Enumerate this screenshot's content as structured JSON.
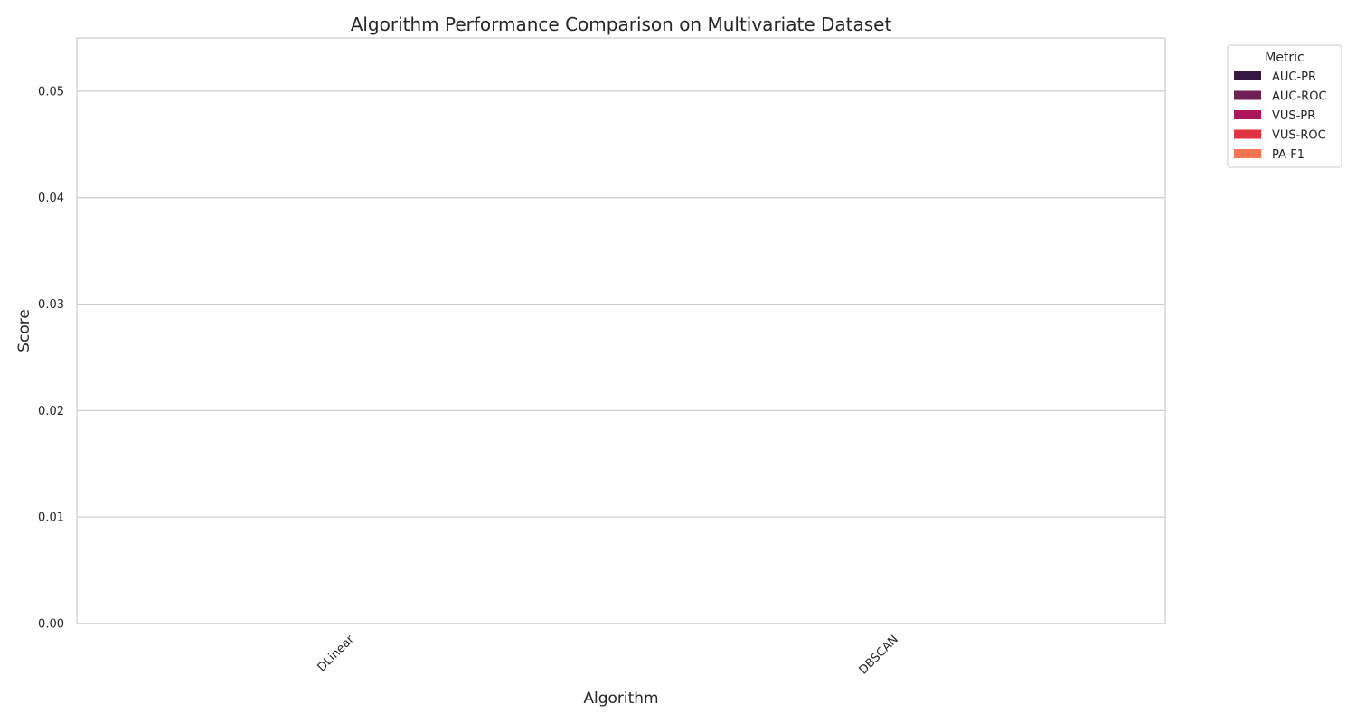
{
  "chart_data": {
    "type": "bar",
    "title": "Algorithm Performance Comparison on Multivariate Dataset",
    "xlabel": "Algorithm",
    "ylabel": "Score",
    "categories": [
      "DLinear",
      "DBSCAN"
    ],
    "ylim": [
      0,
      0.055
    ],
    "yticks": [
      "0.00",
      "0.01",
      "0.02",
      "0.03",
      "0.04",
      "0.05"
    ],
    "grid": true,
    "legend": {
      "title": "Metric",
      "placement": "outside-top-right"
    },
    "series": [
      {
        "name": "AUC-PR",
        "color": "#35193e",
        "values": [
          0,
          0
        ]
      },
      {
        "name": "AUC-ROC",
        "color": "#701f57",
        "values": [
          0,
          0
        ]
      },
      {
        "name": "VUS-PR",
        "color": "#ad1759",
        "values": [
          0,
          0
        ]
      },
      {
        "name": "VUS-ROC",
        "color": "#e13342",
        "values": [
          0,
          0
        ]
      },
      {
        "name": "PA-F1",
        "color": "#f37651",
        "values": [
          0,
          0
        ]
      }
    ]
  }
}
